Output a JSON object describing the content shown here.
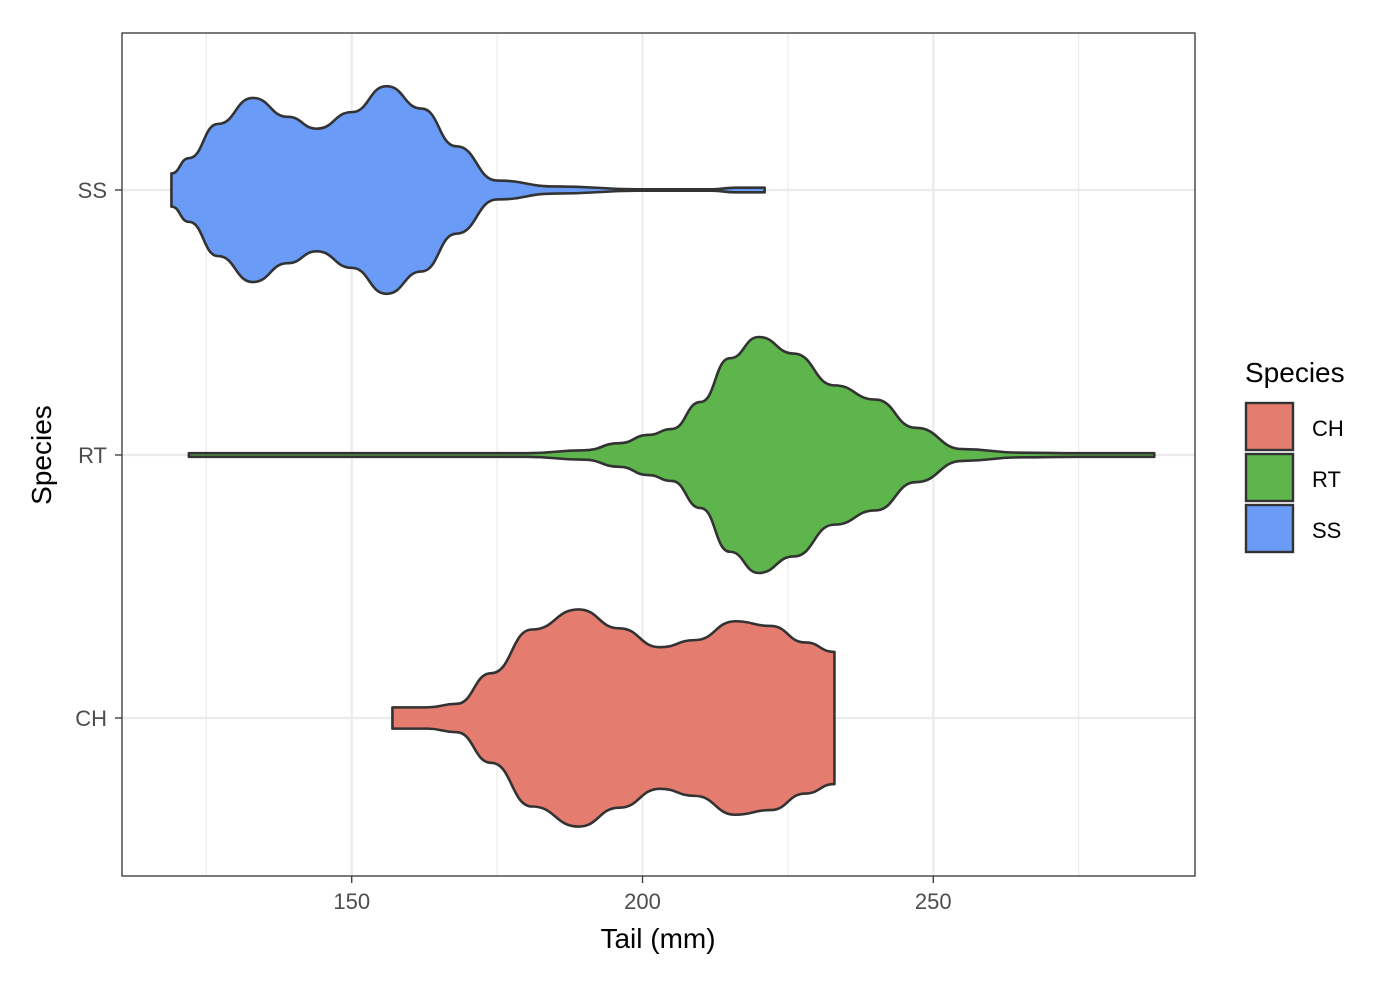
{
  "chart_data": {
    "type": "violin",
    "orientation": "horizontal",
    "xlabel": "Tail (mm)",
    "ylabel": "Species",
    "xlim": [
      110.5,
      295
    ],
    "x_ticks": [
      150,
      200,
      250
    ],
    "x_minor_ticks": [
      125,
      175,
      225,
      275
    ],
    "categories": [
      "CH",
      "RT",
      "SS"
    ],
    "grid": true,
    "legend": {
      "title": "Species",
      "position": "right",
      "entries": [
        {
          "label": "CH",
          "color": "#F8766D"
        },
        {
          "label": "RT",
          "color": "#7CAE00"
        },
        {
          "label": "SS",
          "color": "#619CFF"
        }
      ]
    },
    "colors": {
      "CH": "#E57C70",
      "RT": "#5DB54B",
      "SS": "#6A9BF7",
      "outline": "#333333",
      "grid": "#EBEBEB"
    },
    "series": [
      {
        "name": "CH",
        "color": "#E57C70",
        "range": [
          157,
          233
        ],
        "density_profile": [
          [
            157,
            0.09
          ],
          [
            163,
            0.09
          ],
          [
            168,
            0.12
          ],
          [
            174,
            0.38
          ],
          [
            181,
            0.75
          ],
          [
            189,
            0.92
          ],
          [
            196,
            0.76
          ],
          [
            203,
            0.6
          ],
          [
            209,
            0.66
          ],
          [
            216,
            0.82
          ],
          [
            222,
            0.78
          ],
          [
            228,
            0.64
          ],
          [
            233,
            0.56
          ]
        ]
      },
      {
        "name": "RT",
        "color": "#5DB54B",
        "range": [
          122,
          288
        ],
        "density_profile": [
          [
            122,
            0.015
          ],
          [
            150,
            0.015
          ],
          [
            180,
            0.015
          ],
          [
            190,
            0.04
          ],
          [
            196,
            0.1
          ],
          [
            201,
            0.17
          ],
          [
            205,
            0.22
          ],
          [
            210,
            0.45
          ],
          [
            215,
            0.82
          ],
          [
            220,
            1.0
          ],
          [
            226,
            0.86
          ],
          [
            233,
            0.59
          ],
          [
            240,
            0.47
          ],
          [
            247,
            0.23
          ],
          [
            255,
            0.05
          ],
          [
            265,
            0.02
          ],
          [
            275,
            0.015
          ],
          [
            288,
            0.015
          ]
        ]
      },
      {
        "name": "SS",
        "color": "#6A9BF7",
        "range": [
          119,
          221
        ],
        "density_profile": [
          [
            119,
            0.14
          ],
          [
            122,
            0.27
          ],
          [
            127,
            0.56
          ],
          [
            133,
            0.78
          ],
          [
            139,
            0.62
          ],
          [
            144,
            0.52
          ],
          [
            150,
            0.66
          ],
          [
            156,
            0.88
          ],
          [
            162,
            0.69
          ],
          [
            168,
            0.37
          ],
          [
            175,
            0.08
          ],
          [
            185,
            0.03
          ],
          [
            200,
            0.006
          ],
          [
            212,
            0.006
          ],
          [
            216,
            0.02
          ],
          [
            221,
            0.02
          ]
        ]
      }
    ]
  }
}
